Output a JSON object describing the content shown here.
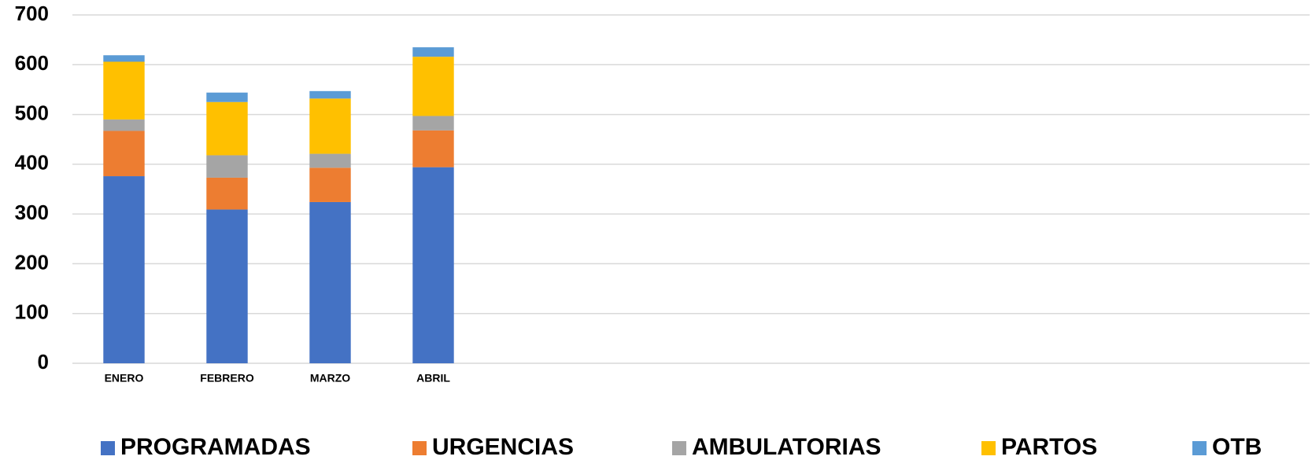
{
  "chart_data": {
    "type": "stacked_bar",
    "categories": [
      "ENERO",
      "FEBRERO",
      "MARZO",
      "ABRIL",
      null,
      null,
      null,
      null,
      null,
      null,
      null,
      null
    ],
    "series": [
      {
        "name": "PROGRAMADAS",
        "color": "#4472c4",
        "values": [
          376,
          309,
          324,
          394,
          null,
          null,
          null,
          null,
          null,
          null,
          null,
          null
        ]
      },
      {
        "name": "URGENCIAS",
        "color": "#ed7d31",
        "values": [
          91,
          64,
          69,
          74,
          null,
          null,
          null,
          null,
          null,
          null,
          null,
          null
        ]
      },
      {
        "name": "AMBULATORIAS",
        "color": "#a5a5a5",
        "values": [
          23,
          45,
          28,
          29,
          null,
          null,
          null,
          null,
          null,
          null,
          null,
          null
        ]
      },
      {
        "name": "PARTOS",
        "color": "#ffc000",
        "values": [
          116,
          107,
          111,
          119,
          null,
          null,
          null,
          null,
          null,
          null,
          null,
          null
        ]
      },
      {
        "name": "OTB",
        "color": "#5b9bd5",
        "values": [
          13,
          19,
          15,
          19,
          null,
          null,
          null,
          null,
          null,
          null,
          null,
          null
        ]
      }
    ],
    "ylim": [
      0,
      700
    ],
    "yticks": [
      0,
      100,
      200,
      300,
      400,
      500,
      600,
      700
    ],
    "grid": true,
    "legend": "bottom"
  }
}
